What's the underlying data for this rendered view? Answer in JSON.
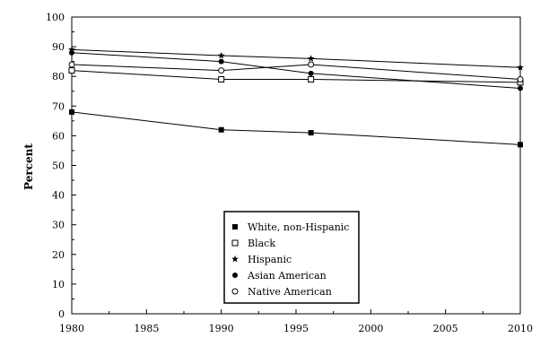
{
  "chart_data": {
    "type": "line",
    "title": "",
    "xlabel": "",
    "ylabel": "Percent",
    "xlim": [
      1980,
      2010
    ],
    "ylim": [
      0,
      100
    ],
    "x_ticks": [
      1980,
      1985,
      1990,
      1995,
      2000,
      2005,
      2010
    ],
    "y_ticks": [
      0,
      10,
      20,
      30,
      40,
      50,
      60,
      70,
      80,
      90,
      100
    ],
    "grid": false,
    "legend_position": "bottom-center",
    "series": [
      {
        "name": "White, non-Hispanic",
        "marker": "filled-square",
        "x": [
          1980,
          1990,
          1996,
          2010
        ],
        "values": [
          68,
          62,
          61,
          57
        ]
      },
      {
        "name": "Black",
        "marker": "open-square",
        "x": [
          1980,
          1990,
          1996,
          2010
        ],
        "values": [
          82,
          79,
          79,
          78
        ]
      },
      {
        "name": "Hispanic",
        "marker": "star",
        "x": [
          1980,
          1990,
          1996,
          2010
        ],
        "values": [
          89,
          87,
          86,
          83
        ]
      },
      {
        "name": "Asian American",
        "marker": "filled-circle",
        "x": [
          1980,
          1990,
          1996,
          2010
        ],
        "values": [
          88,
          85,
          81,
          76
        ]
      },
      {
        "name": "Native American",
        "marker": "open-circle",
        "x": [
          1980,
          1990,
          1996,
          2010
        ],
        "values": [
          84,
          82,
          84,
          79
        ]
      }
    ]
  }
}
